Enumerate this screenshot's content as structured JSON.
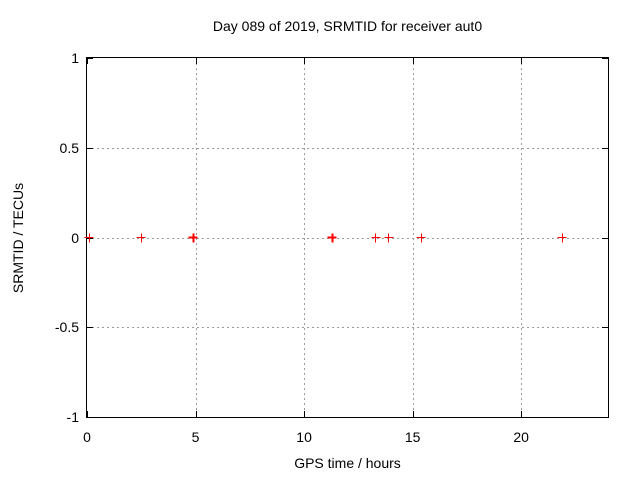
{
  "window": {
    "background": "#ffffff"
  },
  "chart_data": {
    "type": "scatter",
    "title": "Day 089 of 2019, SRMTID for receiver aut0",
    "xlabel": "GPS time / hours",
    "ylabel": "SRMTID / TECUs",
    "xlim": [
      0,
      24
    ],
    "ylim": [
      -1,
      1
    ],
    "grid": true,
    "legend": "none",
    "x_ticks": [
      {
        "v": 0,
        "label": "0"
      },
      {
        "v": 5,
        "label": "5"
      },
      {
        "v": 10,
        "label": "10"
      },
      {
        "v": 15,
        "label": "15"
      },
      {
        "v": 20,
        "label": "20"
      }
    ],
    "y_ticks": [
      {
        "v": 1,
        "label": "1"
      },
      {
        "v": 0.5,
        "label": "0.5"
      },
      {
        "v": 0,
        "label": "0"
      },
      {
        "v": -0.5,
        "label": "-0.5"
      },
      {
        "v": -1,
        "label": "-1"
      }
    ],
    "series": [
      {
        "name": "SRMTID",
        "marker": "plus",
        "color": "#ff0000",
        "points": [
          {
            "x": 0.1,
            "y": 0
          },
          {
            "x": 2.5,
            "y": 0
          },
          {
            "x": 4.9,
            "y": 0,
            "bold": true
          },
          {
            "x": 11.3,
            "y": 0,
            "bold": true
          },
          {
            "x": 13.3,
            "y": 0
          },
          {
            "x": 13.9,
            "y": 0
          },
          {
            "x": 15.4,
            "y": 0
          },
          {
            "x": 21.9,
            "y": 0
          }
        ]
      }
    ],
    "colors": {
      "marker": "#ff0000",
      "grid": "#9b9b9b",
      "border": "#000000",
      "text": "#000000",
      "background": "#ffffff"
    }
  }
}
